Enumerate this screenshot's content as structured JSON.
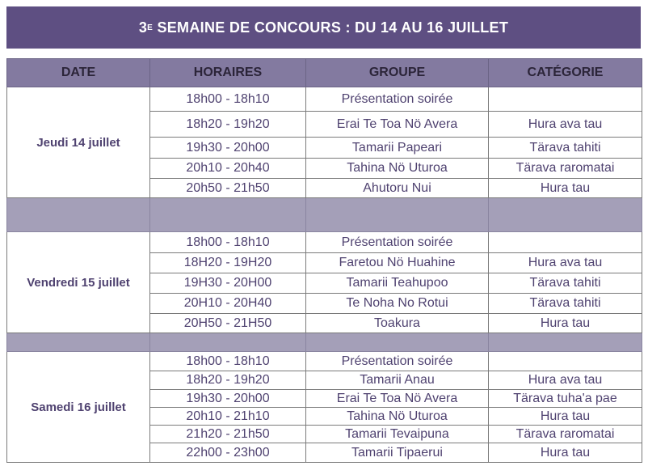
{
  "title": {
    "prefix": "3",
    "sup": "E",
    "rest": " SEMAINE DE CONCOURS : DU 14 AU 16 JUILLET"
  },
  "headers": [
    "DATE",
    "HORAIRES",
    "GROUPE",
    "CATÉGORIE"
  ],
  "colors": {
    "banner": "#5e4f82",
    "header": "#837aa0",
    "separator": "#a49fb8",
    "text": "#4f4270"
  },
  "days": [
    {
      "date": "Jeudi 14 juillet",
      "rows": [
        {
          "time": "18h00 - 18h10",
          "group": "Présentation soirée",
          "category": ""
        },
        {
          "time": "18h20 - 19h20",
          "group": "Erai Te Toa Nö Avera",
          "category": "Hura ava tau"
        },
        {
          "time": "19h30 - 20h00",
          "group": "Tamarii Papeari",
          "category": "Tärava tahiti"
        },
        {
          "time": "20h10 - 20h40",
          "group": "Tahina Nö Uturoa",
          "category": "Tärava raromatai"
        },
        {
          "time": "20h50 - 21h50",
          "group": "Ahutoru Nui",
          "category": "Hura tau"
        }
      ]
    },
    {
      "date": "Vendredi 15 juillet",
      "rows": [
        {
          "time": "18h00 - 18h10",
          "group": "Présentation soirée",
          "category": ""
        },
        {
          "time": "18H20 - 19H20",
          "group": "Faretou Nö Huahine",
          "category": "Hura ava tau"
        },
        {
          "time": "19H30 - 20H00",
          "group": "Tamarii Teahupoo",
          "category": "Tärava tahiti"
        },
        {
          "time": "20H10 - 20H40",
          "group": "Te Noha No Rotui",
          "category": "Tärava tahiti"
        },
        {
          "time": "20H50 - 21H50",
          "group": "Toakura",
          "category": "Hura tau"
        }
      ]
    },
    {
      "date": "Samedi 16 juillet",
      "rows": [
        {
          "time": "18h00 - 18h10",
          "group": "Présentation soirée",
          "category": ""
        },
        {
          "time": "18h20 - 19h20",
          "group": "Tamarii Anau",
          "category": "Hura ava tau"
        },
        {
          "time": "19h30 - 20h00",
          "group": "Erai Te Toa Nö Avera",
          "category": "Tärava tuha'a pae"
        },
        {
          "time": "20h10 - 21h10",
          "group": "Tahina Nö Uturoa",
          "category": "Hura tau"
        },
        {
          "time": "21h20 - 21h50",
          "group": "Tamarii Tevaipuna",
          "category": "Tärava raromatai"
        },
        {
          "time": "22h00 - 23h00",
          "group": "Tamarii Tipaerui",
          "category": "Hura tau"
        }
      ]
    }
  ]
}
